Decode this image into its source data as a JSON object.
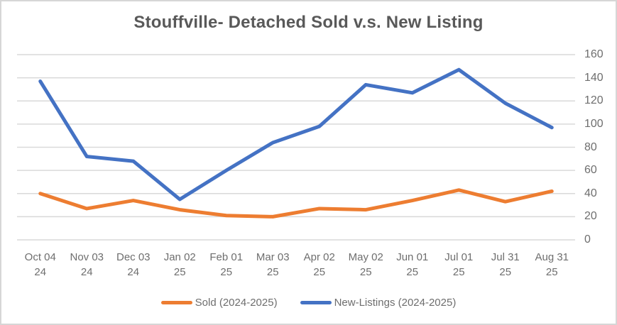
{
  "window": {
    "background": "#FFFFFF",
    "border_color": "#D6D6D6"
  },
  "chart_data": {
    "type": "line",
    "title": "Stouffville- Detached Sold v.s. New Listing",
    "categories": [
      "Oct 04 24",
      "Nov 03 24",
      "Dec 03 24",
      "Jan 02 25",
      "Feb 01 25",
      "Mar 03 25",
      "Apr 02 25",
      "May 02 25",
      "Jun 01 25",
      "Jul 01 25",
      "Jul 31 25",
      "Aug 31 25"
    ],
    "series": [
      {
        "name": "Sold (2024-2025)",
        "color": "#ED7D31",
        "values": [
          40,
          27,
          34,
          26,
          21,
          20,
          27,
          26,
          34,
          43,
          33,
          42
        ]
      },
      {
        "name": "New-Listings (2024-2025)",
        "color": "#4472C4",
        "values": [
          137,
          72,
          68,
          35,
          60,
          84,
          98,
          134,
          127,
          147,
          118,
          97
        ]
      }
    ],
    "xlabel": "",
    "ylabel": "",
    "ylim": [
      0,
      160
    ],
    "yticks": [
      0,
      20,
      40,
      60,
      80,
      100,
      120,
      140,
      160
    ],
    "axis_side": "right",
    "grid": true,
    "legend_position": "bottom",
    "colors": {
      "grid": "#D9D9D9",
      "axis_text": "#6E6E6E",
      "title_text": "#595959"
    }
  }
}
